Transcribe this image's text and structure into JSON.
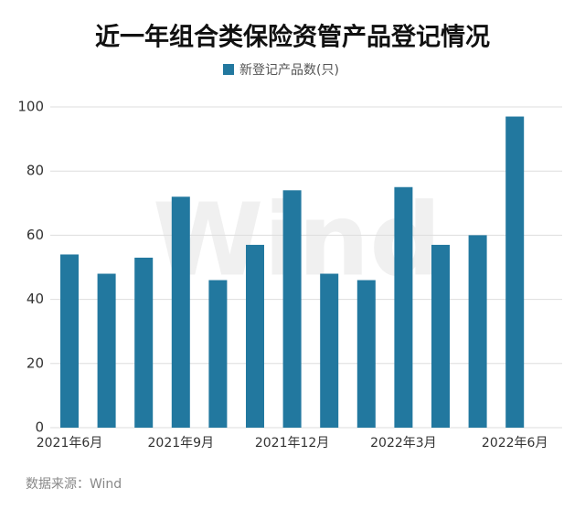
{
  "chart_data": {
    "type": "bar",
    "title": "近一年组合类保险资管产品登记情况",
    "categories": [
      "2021年6月",
      null,
      null,
      "2021年9月",
      null,
      null,
      "2021年12月",
      null,
      null,
      "2022年3月",
      null,
      null,
      "2022年6月"
    ],
    "series": [
      {
        "name": "新登记产品数(只)",
        "color": "#22789f",
        "values": [
          54,
          48,
          53,
          72,
          46,
          57,
          74,
          48,
          46,
          75,
          57,
          60,
          97
        ]
      }
    ],
    "ylim": [
      0,
      100
    ],
    "yticks": [
      0,
      20,
      40,
      60,
      80,
      100
    ],
    "grid": true,
    "watermark": "Wind",
    "source": "数据来源：Wind"
  }
}
